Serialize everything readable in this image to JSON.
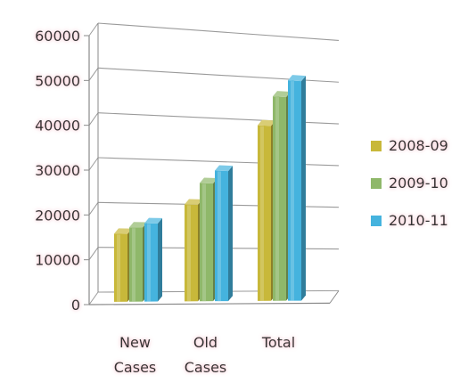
{
  "chart_data": {
    "type": "bar",
    "style": "3d-clustered-column",
    "title": "",
    "xlabel": "",
    "ylabel": "",
    "categories": [
      "New Cases",
      "Old Cases",
      "Total"
    ],
    "category_lines": [
      [
        "New",
        "Cases"
      ],
      [
        "Old",
        "Cases"
      ],
      [
        "Total"
      ]
    ],
    "y_ticks": [
      "0",
      "10000",
      "20000",
      "30000",
      "40000",
      "50000",
      "60000"
    ],
    "ylim": [
      0,
      60000
    ],
    "grid": true,
    "legend_position": "right",
    "series": [
      {
        "name": "2008-09",
        "color": "#c8b83a",
        "values": [
          17500,
          24500,
          43500
        ]
      },
      {
        "name": "2009-10",
        "color": "#8fb86a",
        "values": [
          19000,
          29500,
          50500
        ]
      },
      {
        "name": "2010-11",
        "color": "#45b3de",
        "values": [
          20000,
          32500,
          54500
        ]
      }
    ]
  }
}
